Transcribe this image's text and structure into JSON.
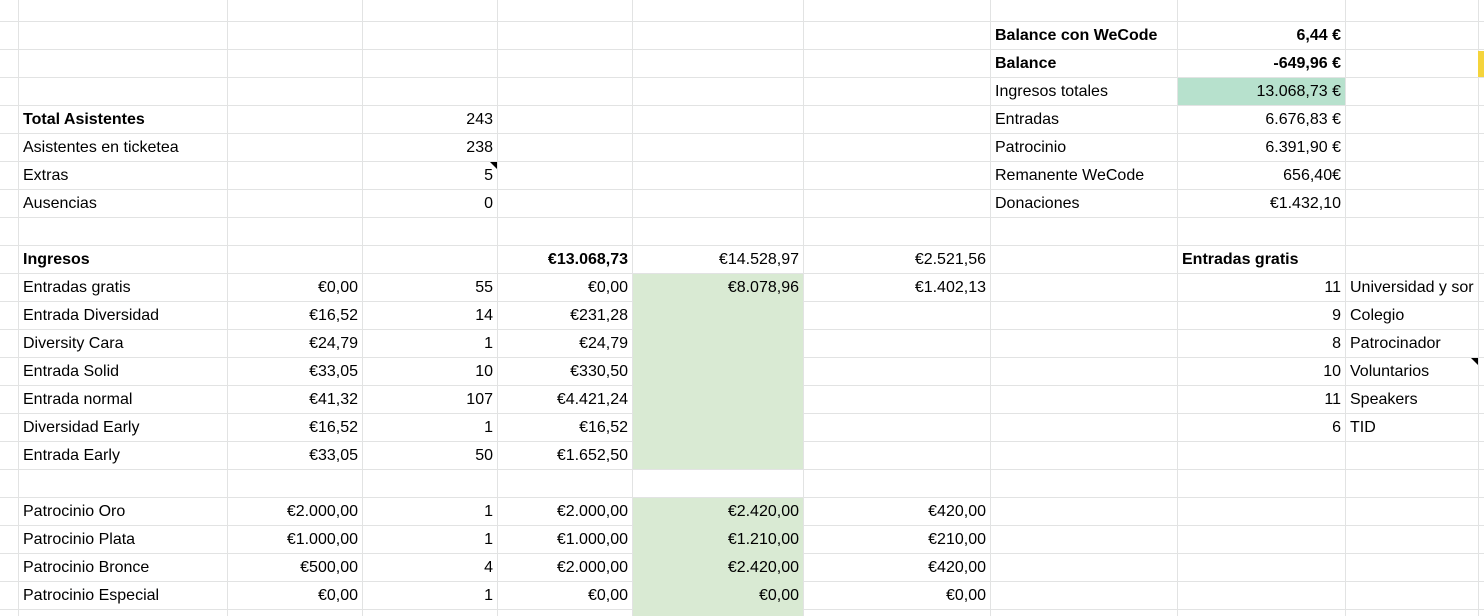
{
  "top_summary": [
    {
      "label": "Balance con WeCode",
      "value": "6,44 €",
      "bold": true
    },
    {
      "label": "Balance",
      "value": "-649,96 €",
      "bold": true
    },
    {
      "label": "Ingresos totales",
      "value": "13.068,73 €",
      "bold": false
    },
    {
      "label": "Entradas",
      "value": "6.676,83 €",
      "bold": false
    },
    {
      "label": "Patrocinio",
      "value": "6.391,90 €",
      "bold": false
    },
    {
      "label": "Remanente WeCode",
      "value": "656,40€",
      "bold": false
    },
    {
      "label": "Donaciones",
      "value": "€1.432,10",
      "bold": false
    }
  ],
  "attendees": [
    {
      "label": "Total Asistentes",
      "value": "243",
      "bold": true
    },
    {
      "label": "Asistentes en ticketea",
      "value": "238",
      "bold": false
    },
    {
      "label": "Extras",
      "value": "5",
      "bold": false
    },
    {
      "label": "Ausencias",
      "value": "0",
      "bold": false
    }
  ],
  "ingresos_header": {
    "label": "Ingresos",
    "total": "€13.068,73",
    "gross": "€14.528,97",
    "tax": "€2.521,56"
  },
  "tickets": [
    {
      "name": "Entradas gratis",
      "price": "€0,00",
      "qty": "55",
      "total": "€0,00",
      "gross": "€8.078,96",
      "tax": "€1.402,13"
    },
    {
      "name": "Entrada Diversidad",
      "price": "€16,52",
      "qty": "14",
      "total": "€231,28",
      "gross": "",
      "tax": ""
    },
    {
      "name": "Diversity Cara",
      "price": "€24,79",
      "qty": "1",
      "total": "€24,79",
      "gross": "",
      "tax": ""
    },
    {
      "name": "Entrada Solid",
      "price": "€33,05",
      "qty": "10",
      "total": "€330,50",
      "gross": "",
      "tax": ""
    },
    {
      "name": "Entrada normal",
      "price": "€41,32",
      "qty": "107",
      "total": "€4.421,24",
      "gross": "",
      "tax": ""
    },
    {
      "name": "Diversidad Early",
      "price": "€16,52",
      "qty": "1",
      "total": "€16,52",
      "gross": "",
      "tax": ""
    },
    {
      "name": "Entrada Early",
      "price": "€33,05",
      "qty": "50",
      "total": "€1.652,50",
      "gross": "",
      "tax": ""
    }
  ],
  "sponsors": [
    {
      "name": "Patrocinio Oro",
      "price": "€2.000,00",
      "qty": "1",
      "total": "€2.000,00",
      "gross": "€2.420,00",
      "tax": "€420,00"
    },
    {
      "name": "Patrocinio Plata",
      "price": "€1.000,00",
      "qty": "1",
      "total": "€1.000,00",
      "gross": "€1.210,00",
      "tax": "€210,00"
    },
    {
      "name": "Patrocinio Bronce",
      "price": "€500,00",
      "qty": "4",
      "total": "€2.000,00",
      "gross": "€2.420,00",
      "tax": "€420,00"
    },
    {
      "name": "Patrocinio Especial",
      "price": "€0,00",
      "qty": "1",
      "total": "€0,00",
      "gross": "€0,00",
      "tax": "€0,00"
    }
  ],
  "free_tickets": {
    "header": "Entradas gratis",
    "rows": [
      {
        "count": "11",
        "label": "Universidad y sor"
      },
      {
        "count": "9",
        "label": "Colegio"
      },
      {
        "count": "8",
        "label": "Patrocinador"
      },
      {
        "count": "10",
        "label": "Voluntarios"
      },
      {
        "count": "11",
        "label": "Speakers"
      },
      {
        "count": "6",
        "label": "TID"
      }
    ]
  },
  "colors": {
    "grid": "#e2e3e3",
    "green_highlight": "#b7e1cd",
    "green_light": "#d9ead3",
    "selection_yellow": "#f5d43b"
  }
}
